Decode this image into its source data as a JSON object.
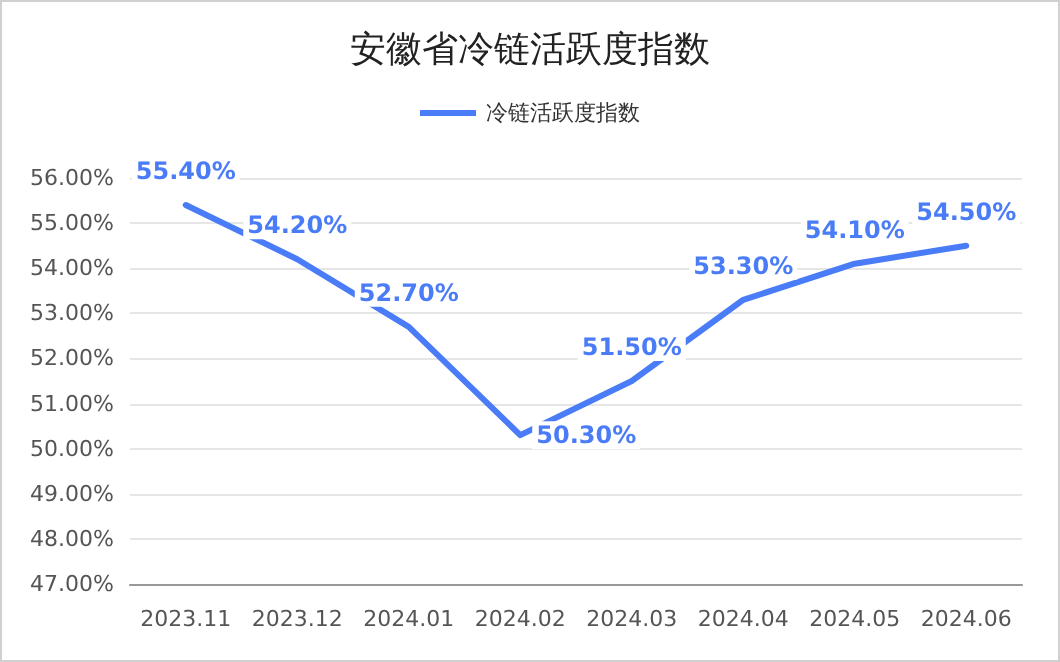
{
  "chart_data": {
    "type": "line",
    "title": "安徽省冷链活跃度指数",
    "categories": [
      "2023.11",
      "2023.12",
      "2024.01",
      "2024.02",
      "2024.03",
      "2024.04",
      "2024.05",
      "2024.06"
    ],
    "series": [
      {
        "name": "冷链活跃度指数",
        "color": "#4a7cf7",
        "values": [
          55.4,
          54.2,
          52.7,
          50.3,
          51.5,
          53.3,
          54.1,
          54.5
        ],
        "value_labels": [
          "55.40%",
          "54.20%",
          "52.70%",
          "50.30%",
          "51.50%",
          "53.30%",
          "54.10%",
          "54.50%"
        ]
      }
    ],
    "ylim": [
      47,
      56
    ],
    "yticks": [
      {
        "value": 47,
        "label": "47.00%"
      },
      {
        "value": 48,
        "label": "48.00%"
      },
      {
        "value": 49,
        "label": "49.00%"
      },
      {
        "value": 50,
        "label": "50.00%"
      },
      {
        "value": 51,
        "label": "51.00%"
      },
      {
        "value": 52,
        "label": "52.00%"
      },
      {
        "value": 53,
        "label": "53.00%"
      },
      {
        "value": 54,
        "label": "54.00%"
      },
      {
        "value": 55,
        "label": "55.00%"
      },
      {
        "value": 56,
        "label": "56.00%"
      }
    ],
    "grid": "y",
    "legend": "top",
    "marker": "none",
    "line_style": "solid"
  }
}
